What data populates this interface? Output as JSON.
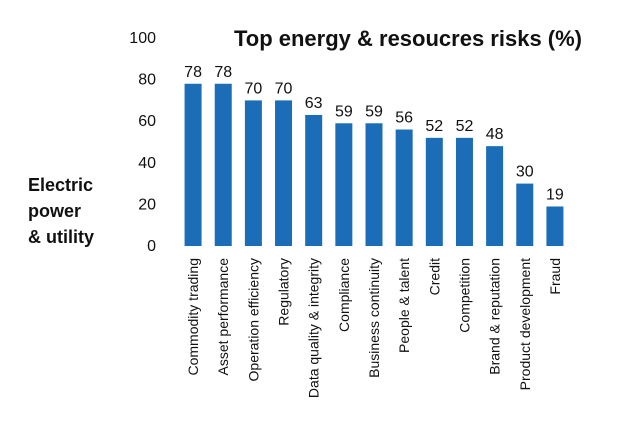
{
  "chart_data": {
    "type": "bar",
    "title": "Top energy & resoucres risks (%)",
    "side_label": [
      "Electric",
      "power",
      "& utility"
    ],
    "categories": [
      "Commodity trading",
      "Asset performance",
      "Operation efficiency",
      "Regulatory",
      "Data quality & integrity",
      "Compliance",
      "Business continuity",
      "People & talent",
      "Credit",
      "Competition",
      "Brand & reputation",
      "Product development",
      "Fraud"
    ],
    "values": [
      78,
      78,
      70,
      70,
      63,
      59,
      59,
      56,
      52,
      52,
      48,
      30,
      19
    ],
    "ylim": [
      0,
      100
    ],
    "yticks": [
      "0",
      "20",
      "40",
      "60",
      "80",
      "100"
    ],
    "grid": false,
    "bar_color": "#1a6db6"
  }
}
